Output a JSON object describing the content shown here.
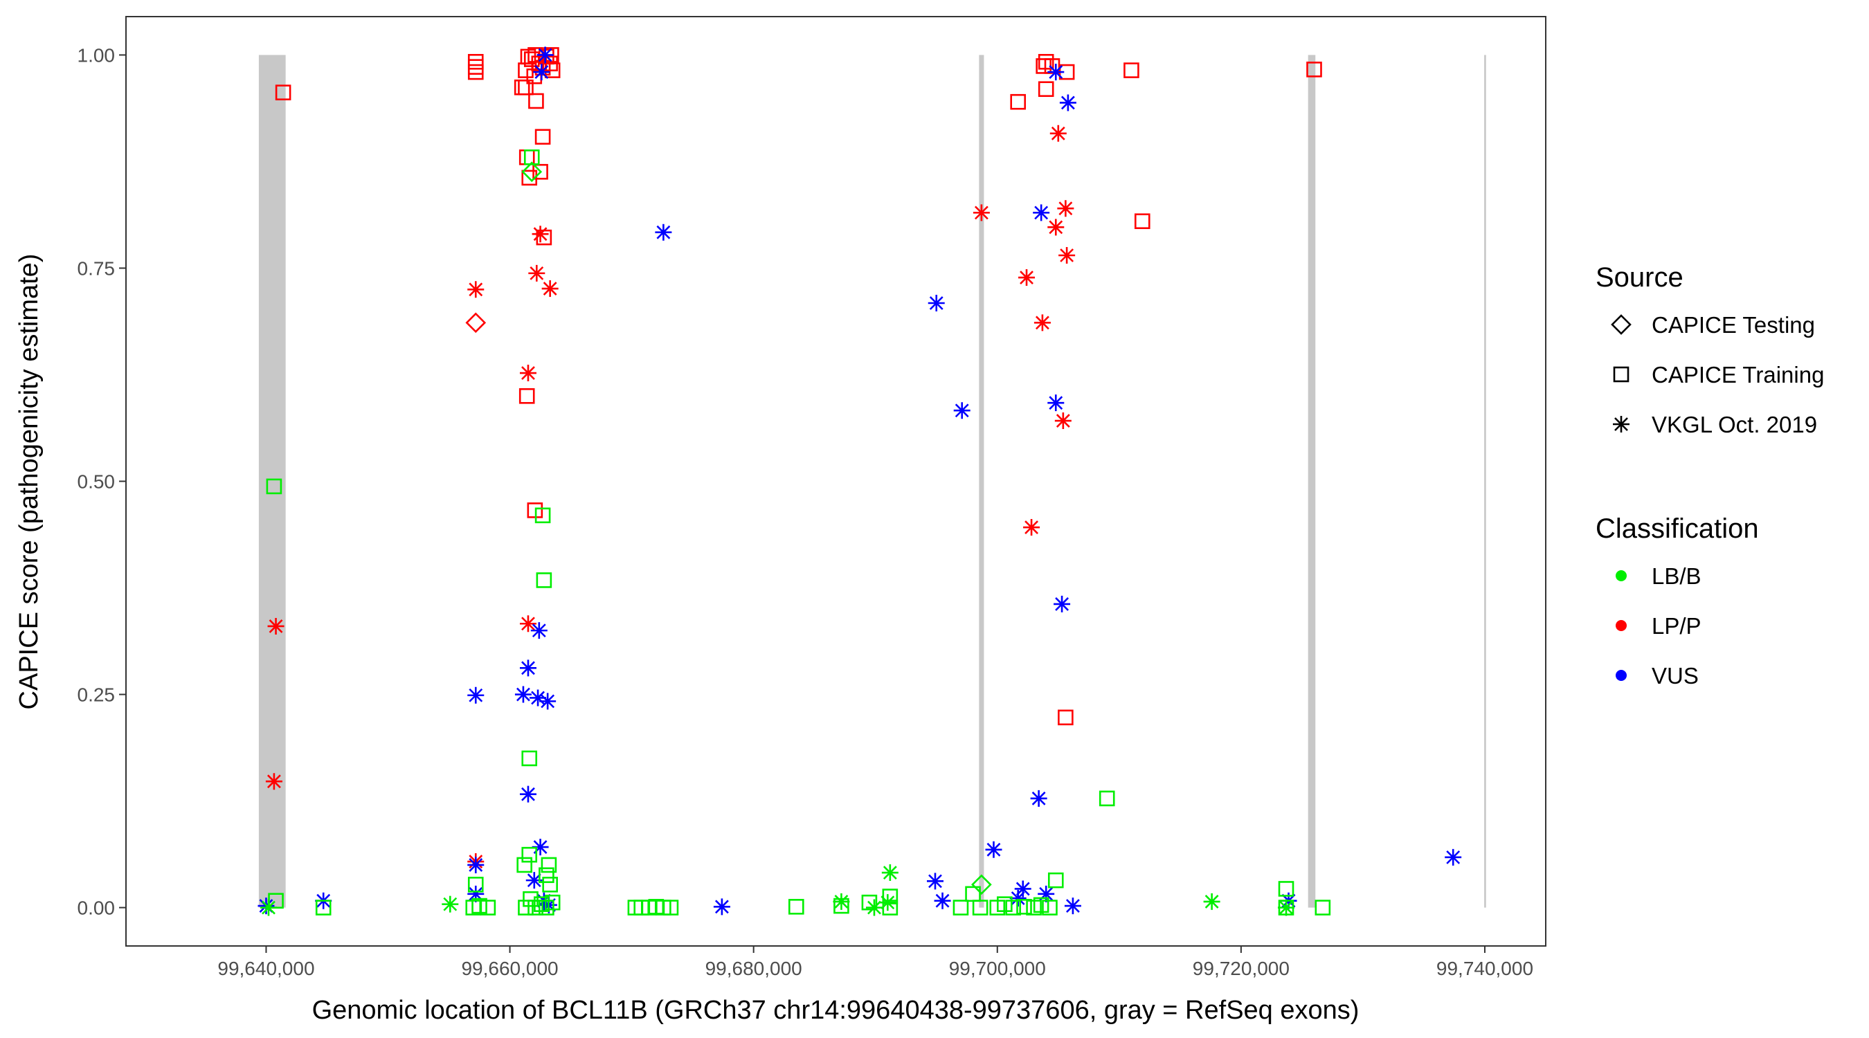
{
  "chart_data": {
    "type": "scatter",
    "xlabel": "Genomic location of BCL11B (GRCh37 chr14:99640438-99737606, gray = RefSeq exons)",
    "ylabel": "CAPICE score (pathogenicity estimate)",
    "xlim": [
      99628500,
      99745000
    ],
    "ylim": [
      -0.045,
      1.045
    ],
    "x_ticks": [
      99640000,
      99660000,
      99680000,
      99700000,
      99720000,
      99740000
    ],
    "x_tick_labels": [
      "99,640,000",
      "99,660,000",
      "99,680,000",
      "99,700,000",
      "99,720,000",
      "99,740,000"
    ],
    "y_ticks": [
      0,
      0.25,
      0.5,
      0.75,
      1.0
    ],
    "y_tick_labels": [
      "0.00",
      "0.25",
      "0.50",
      "0.75",
      "1.00"
    ],
    "grid": false,
    "exons": [
      [
        99639400,
        99641600
      ],
      [
        99698500,
        99698900
      ],
      [
        99725500,
        99726100
      ],
      [
        99739950,
        99740100
      ]
    ],
    "legend": {
      "placement": "right",
      "source_title": "Source",
      "source_items": [
        {
          "label": "CAPICE Testing",
          "shape": "diamond"
        },
        {
          "label": "CAPICE Training",
          "shape": "square"
        },
        {
          "label": "VKGL Oct. 2019",
          "shape": "asterisk"
        }
      ],
      "class_title": "Classification",
      "class_items": [
        {
          "label": "LB/B",
          "color": "#00ee00"
        },
        {
          "label": "LP/P",
          "color": "#ff0000"
        },
        {
          "label": "VUS",
          "color": "#0000ff"
        }
      ]
    },
    "series_fields": [
      "position",
      "score",
      "source",
      "classification"
    ],
    "points": [
      [
        99641400,
        0.956,
        "square",
        "LP/P"
      ],
      [
        99657200,
        0.992,
        "square",
        "LP/P"
      ],
      [
        99657200,
        0.986,
        "square",
        "LP/P"
      ],
      [
        99657200,
        0.98,
        "square",
        "LP/P"
      ],
      [
        99661500,
        0.998,
        "square",
        "LP/P"
      ],
      [
        99661800,
        0.995,
        "square",
        "LP/P"
      ],
      [
        99662100,
        1.0,
        "square",
        "LP/P"
      ],
      [
        99662400,
        0.99,
        "square",
        "LP/P"
      ],
      [
        99662700,
        0.985,
        "square",
        "LP/P"
      ],
      [
        99663000,
        0.998,
        "square",
        "LP/P"
      ],
      [
        99663300,
        0.99,
        "square",
        "LP/P"
      ],
      [
        99663500,
        0.982,
        "square",
        "LP/P"
      ],
      [
        99661300,
        0.982,
        "square",
        "LP/P"
      ],
      [
        99662000,
        0.975,
        "square",
        "LP/P"
      ],
      [
        99663400,
        1.0,
        "square",
        "LP/P"
      ],
      [
        99661000,
        0.962,
        "square",
        "LP/P"
      ],
      [
        99661300,
        0.962,
        "square",
        "LP/P"
      ],
      [
        99662150,
        0.946,
        "square",
        "LP/P"
      ],
      [
        99662700,
        0.904,
        "square",
        "LP/P"
      ],
      [
        99661400,
        0.88,
        "square",
        "LP/P"
      ],
      [
        99662500,
        0.863,
        "square",
        "LP/P"
      ],
      [
        99661600,
        0.856,
        "square",
        "LP/P"
      ],
      [
        99662800,
        0.786,
        "square",
        "LP/P"
      ],
      [
        99661400,
        0.6,
        "square",
        "LP/P"
      ],
      [
        99662060,
        0.466,
        "square",
        "LP/P"
      ],
      [
        99701700,
        0.945,
        "square",
        "LP/P"
      ],
      [
        99703800,
        0.987,
        "square",
        "LP/P"
      ],
      [
        99704000,
        0.992,
        "square",
        "LP/P"
      ],
      [
        99704500,
        0.987,
        "square",
        "LP/P"
      ],
      [
        99704000,
        0.96,
        "square",
        "LP/P"
      ],
      [
        99705700,
        0.98,
        "square",
        "LP/P"
      ],
      [
        99711000,
        0.982,
        "square",
        "LP/P"
      ],
      [
        99711900,
        0.805,
        "square",
        "LP/P"
      ],
      [
        99705600,
        0.223,
        "square",
        "LP/P"
      ],
      [
        99726000,
        0.983,
        "square",
        "LP/P"
      ],
      [
        99640800,
        0.33,
        "asterisk",
        "LP/P"
      ],
      [
        99640650,
        0.148,
        "asterisk",
        "LP/P"
      ],
      [
        99657200,
        0.725,
        "asterisk",
        "LP/P"
      ],
      [
        99657200,
        0.054,
        "asterisk",
        "LP/P"
      ],
      [
        99661500,
        0.627,
        "asterisk",
        "LP/P"
      ],
      [
        99661500,
        0.333,
        "asterisk",
        "LP/P"
      ],
      [
        99662500,
        0.79,
        "asterisk",
        "LP/P"
      ],
      [
        99662200,
        0.744,
        "asterisk",
        "LP/P"
      ],
      [
        99663300,
        0.726,
        "asterisk",
        "LP/P"
      ],
      [
        99698700,
        0.815,
        "asterisk",
        "LP/P"
      ],
      [
        99702400,
        0.739,
        "asterisk",
        "LP/P"
      ],
      [
        99703700,
        0.686,
        "asterisk",
        "LP/P"
      ],
      [
        99702800,
        0.446,
        "asterisk",
        "LP/P"
      ],
      [
        99705000,
        0.908,
        "asterisk",
        "LP/P"
      ],
      [
        99704800,
        0.798,
        "asterisk",
        "LP/P"
      ],
      [
        99705600,
        0.82,
        "asterisk",
        "LP/P"
      ],
      [
        99705700,
        0.765,
        "asterisk",
        "LP/P"
      ],
      [
        99705400,
        0.571,
        "asterisk",
        "LP/P"
      ],
      [
        99657200,
        0.686,
        "diamond",
        "LP/P"
      ],
      [
        99662900,
        1.0,
        "asterisk",
        "VUS"
      ],
      [
        99662600,
        0.98,
        "asterisk",
        "VUS"
      ],
      [
        99672600,
        0.792,
        "asterisk",
        "VUS"
      ],
      [
        99657200,
        0.249,
        "asterisk",
        "VUS"
      ],
      [
        99661500,
        0.281,
        "asterisk",
        "VUS"
      ],
      [
        99661100,
        0.25,
        "asterisk",
        "VUS"
      ],
      [
        99662300,
        0.246,
        "asterisk",
        "VUS"
      ],
      [
        99663100,
        0.242,
        "asterisk",
        "VUS"
      ],
      [
        99662400,
        0.325,
        "asterisk",
        "VUS"
      ],
      [
        99661500,
        0.133,
        "asterisk",
        "VUS"
      ],
      [
        99662500,
        0.071,
        "asterisk",
        "VUS"
      ],
      [
        99662000,
        0.032,
        "asterisk",
        "VUS"
      ],
      [
        99657200,
        0.05,
        "asterisk",
        "VUS"
      ],
      [
        99657200,
        0.016,
        "asterisk",
        "VUS"
      ],
      [
        99662800,
        0.008,
        "asterisk",
        "VUS"
      ],
      [
        99663200,
        0.003,
        "asterisk",
        "VUS"
      ],
      [
        99640000,
        0.002,
        "asterisk",
        "VUS"
      ],
      [
        99644700,
        0.008,
        "asterisk",
        "VUS"
      ],
      [
        99677400,
        0.001,
        "asterisk",
        "VUS"
      ],
      [
        99695000,
        0.709,
        "asterisk",
        "VUS"
      ],
      [
        99697100,
        0.583,
        "asterisk",
        "VUS"
      ],
      [
        99705800,
        0.944,
        "asterisk",
        "VUS"
      ],
      [
        99704800,
        0.98,
        "asterisk",
        "VUS"
      ],
      [
        99703600,
        0.815,
        "asterisk",
        "VUS"
      ],
      [
        99704800,
        0.592,
        "asterisk",
        "VUS"
      ],
      [
        99705300,
        0.356,
        "asterisk",
        "VUS"
      ],
      [
        99703400,
        0.128,
        "asterisk",
        "VUS"
      ],
      [
        99699700,
        0.068,
        "asterisk",
        "VUS"
      ],
      [
        99694900,
        0.031,
        "asterisk",
        "VUS"
      ],
      [
        99695500,
        0.008,
        "asterisk",
        "VUS"
      ],
      [
        99702100,
        0.022,
        "asterisk",
        "VUS"
      ],
      [
        99701700,
        0.011,
        "asterisk",
        "VUS"
      ],
      [
        99704000,
        0.016,
        "asterisk",
        "VUS"
      ],
      [
        99706200,
        0.002,
        "asterisk",
        "VUS"
      ],
      [
        99737400,
        0.059,
        "asterisk",
        "VUS"
      ],
      [
        99723900,
        0.008,
        "asterisk",
        "VUS"
      ],
      [
        99640650,
        0.494,
        "square",
        "LB/B"
      ],
      [
        99640800,
        0.008,
        "square",
        "LB/B"
      ],
      [
        99644700,
        0.0,
        "square",
        "LB/B"
      ],
      [
        99661600,
        0.175,
        "square",
        "LB/B"
      ],
      [
        99662700,
        0.46,
        "square",
        "LB/B"
      ],
      [
        99662800,
        0.384,
        "square",
        "LB/B"
      ],
      [
        99661800,
        0.88,
        "square",
        "LB/B"
      ],
      [
        99657200,
        0.027,
        "square",
        "LB/B"
      ],
      [
        99661200,
        0.05,
        "square",
        "LB/B"
      ],
      [
        99661600,
        0.062,
        "square",
        "LB/B"
      ],
      [
        99663200,
        0.05,
        "square",
        "LB/B"
      ],
      [
        99663300,
        0.027,
        "square",
        "LB/B"
      ],
      [
        99663000,
        0.038,
        "square",
        "LB/B"
      ],
      [
        99657000,
        0.0,
        "square",
        "LB/B"
      ],
      [
        99657500,
        0.002,
        "square",
        "LB/B"
      ],
      [
        99658200,
        0.0,
        "square",
        "LB/B"
      ],
      [
        99661300,
        0.0,
        "square",
        "LB/B"
      ],
      [
        99661700,
        0.01,
        "square",
        "LB/B"
      ],
      [
        99662100,
        0.0,
        "square",
        "LB/B"
      ],
      [
        99662600,
        0.004,
        "square",
        "LB/B"
      ],
      [
        99663000,
        0.0,
        "square",
        "LB/B"
      ],
      [
        99663500,
        0.006,
        "square",
        "LB/B"
      ],
      [
        99670300,
        0.0,
        "square",
        "LB/B"
      ],
      [
        99670800,
        0.0,
        "square",
        "LB/B"
      ],
      [
        99671400,
        0.0,
        "square",
        "LB/B"
      ],
      [
        99672000,
        0.001,
        "square",
        "LB/B"
      ],
      [
        99672600,
        0.0,
        "square",
        "LB/B"
      ],
      [
        99673200,
        0.0,
        "square",
        "LB/B"
      ],
      [
        99683500,
        0.001,
        "square",
        "LB/B"
      ],
      [
        99687200,
        0.002,
        "square",
        "LB/B"
      ],
      [
        99689500,
        0.006,
        "square",
        "LB/B"
      ],
      [
        99691200,
        0.013,
        "square",
        "LB/B"
      ],
      [
        99691200,
        0.0,
        "square",
        "LB/B"
      ],
      [
        99697000,
        0.0,
        "square",
        "LB/B"
      ],
      [
        99698000,
        0.016,
        "square",
        "LB/B"
      ],
      [
        99698600,
        0.0,
        "square",
        "LB/B"
      ],
      [
        99700000,
        0.0,
        "square",
        "LB/B"
      ],
      [
        99700600,
        0.004,
        "square",
        "LB/B"
      ],
      [
        99701300,
        0.0,
        "square",
        "LB/B"
      ],
      [
        99702200,
        0.001,
        "square",
        "LB/B"
      ],
      [
        99703000,
        0.0,
        "square",
        "LB/B"
      ],
      [
        99703600,
        0.003,
        "square",
        "LB/B"
      ],
      [
        99704300,
        0.0,
        "square",
        "LB/B"
      ],
      [
        99704800,
        0.032,
        "square",
        "LB/B"
      ],
      [
        99709000,
        0.128,
        "square",
        "LB/B"
      ],
      [
        99723700,
        0.022,
        "square",
        "LB/B"
      ],
      [
        99723700,
        0.0,
        "square",
        "LB/B"
      ],
      [
        99726700,
        0.0,
        "square",
        "LB/B"
      ],
      [
        99640200,
        0.0,
        "asterisk",
        "LB/B"
      ],
      [
        99655100,
        0.004,
        "asterisk",
        "LB/B"
      ],
      [
        99687200,
        0.007,
        "asterisk",
        "LB/B"
      ],
      [
        99689900,
        0.0,
        "asterisk",
        "LB/B"
      ],
      [
        99691200,
        0.041,
        "asterisk",
        "LB/B"
      ],
      [
        99691000,
        0.006,
        "asterisk",
        "LB/B"
      ],
      [
        99717600,
        0.007,
        "asterisk",
        "LB/B"
      ],
      [
        99723700,
        0.0,
        "asterisk",
        "LB/B"
      ],
      [
        99661800,
        0.863,
        "diamond",
        "LB/B"
      ],
      [
        99698700,
        0.027,
        "diamond",
        "LB/B"
      ]
    ]
  }
}
